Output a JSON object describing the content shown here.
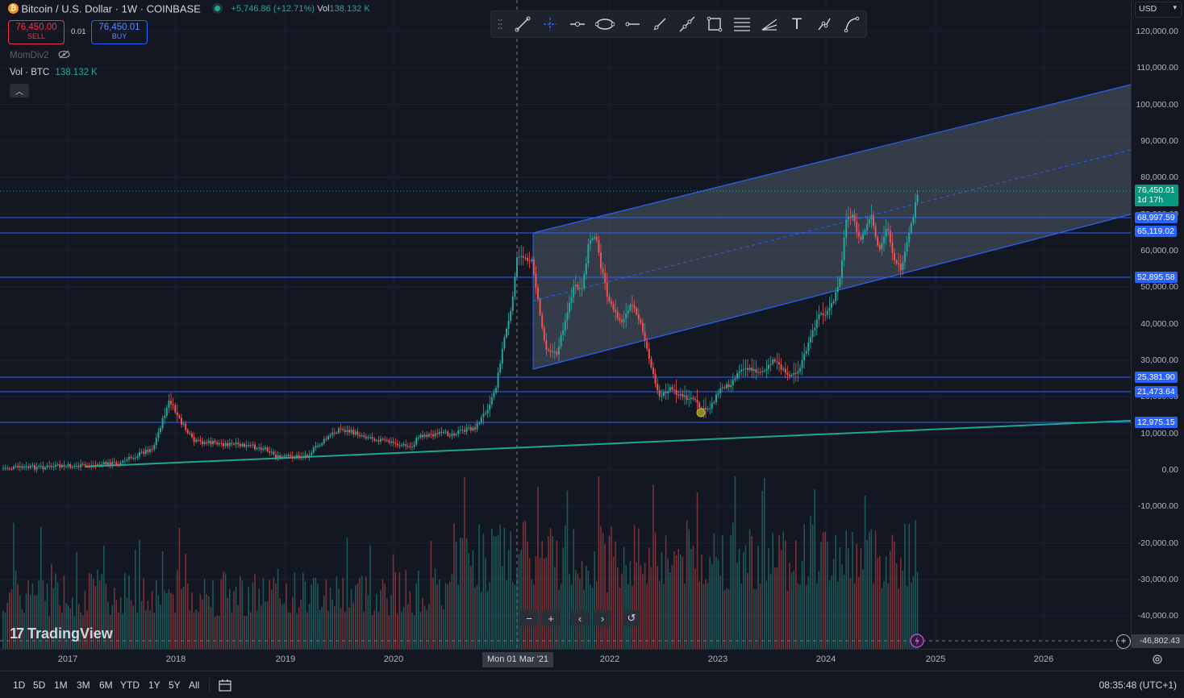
{
  "header": {
    "symbol_icon": "bitcoin-icon",
    "symbol_title": "Bitcoin / U.S. Dollar · 1W · COINBASE",
    "change": "+5,746.86 (+12.71%)",
    "vol_label": "Vol",
    "vol_value": "138.132 K"
  },
  "trade": {
    "sell_price": "76,450.00",
    "sell_label": "SELL",
    "spread": "0.01",
    "buy_price": "76,450.01",
    "buy_label": "BUY"
  },
  "indicators": {
    "momdiv_label": "MomDiv2",
    "vol_label": "Vol · BTC",
    "vol_value": "138.132 K"
  },
  "currency": "USD",
  "price_scale": {
    "ticks": [
      "120,000.00",
      "110,000.00",
      "100,000.00",
      "90,000.00",
      "80,000.00",
      "70,000.00",
      "60,000.00",
      "50,000.00",
      "40,000.00",
      "30,000.00",
      "20,000.00",
      "10,000.00",
      "0.00",
      "-10,000.00",
      "-20,000.00",
      "-30,000.00",
      "-40,000.00"
    ],
    "current_price": "76,450.01",
    "countdown": "1d 17h",
    "levels": [
      "68,997.59",
      "65,119.02",
      "52,895.58",
      "25,381.90",
      "21,473.64",
      "12,975.15"
    ],
    "crosshair_value": "-46,802.43"
  },
  "time_axis": {
    "labels": [
      "2017",
      "2018",
      "2019",
      "2020",
      "2022",
      "2023",
      "2024",
      "2025",
      "2026"
    ],
    "crosshair_label": "Mon 01 Mar '21"
  },
  "timeframes": [
    "1D",
    "5D",
    "1M",
    "3M",
    "6M",
    "YTD",
    "1Y",
    "5Y",
    "All"
  ],
  "clock": "08:35:48 (UTC+1)",
  "watermark": "TradingView",
  "drawing_tools": [
    "trend-line-tool",
    "crosshair-tool",
    "horizontal-ray-tool",
    "ellipse-tool",
    "horizontal-line-tool",
    "ray-tool",
    "extended-line-tool",
    "rectangle-tool",
    "fib-retracement-tool",
    "pitchfork-tool",
    "text-tool",
    "path-tool",
    "curve-tool"
  ],
  "colors": {
    "background": "#131722",
    "up": "#26a69a",
    "down": "#ef5350",
    "channel": "#2962ff",
    "support_line": "#1ea88a",
    "accent": "#2962ff"
  }
}
